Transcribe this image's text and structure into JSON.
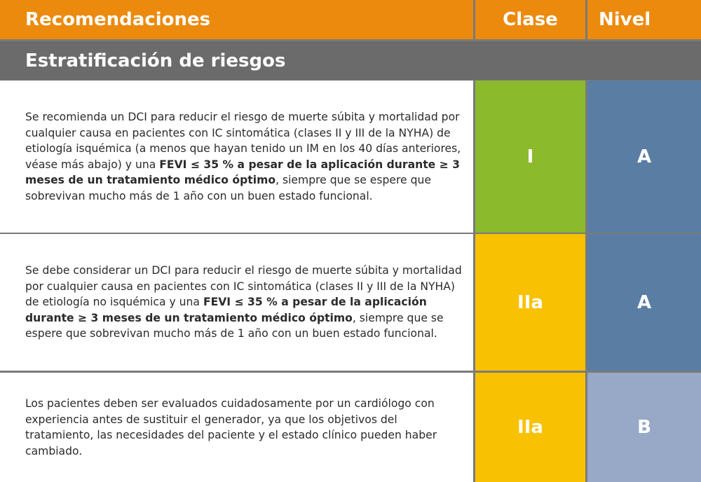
{
  "header": {
    "recommendations": "Recomendaciones",
    "class": "Clase",
    "level": "Nivel"
  },
  "section_title": "Estratificación de riesgos",
  "rows": [
    {
      "text_before": "Se recomienda un DCI para reducir el riesgo de muerte súbita y mortalidad por cualquier causa en pacientes con IC sintomática (clases II y III de la NYHA) de etiología isquémica (a menos que hayan tenido un IM en los 40 días anteriores, véase más abajo) y una ",
      "text_bold": "FEVI ≤ 35 % a pesar de la aplicación durante ≥ 3 meses de un tratamiento médico óptimo",
      "text_after": ", siempre que se espere que sobrevivan mucho más de 1 año con un buen estado funcional.",
      "class": "I",
      "level": "A",
      "class_color": "#8bbb2c",
      "level_color": "#5a7da4"
    },
    {
      "text_before": "Se debe considerar un DCI para reducir el riesgo de muerte súbita y mortalidad por cualquier causa en pacientes con IC sintomática (clases II y III de la NYHA) de etiología no isquémica y una ",
      "text_bold": "FEVI ≤ 35 % a pesar de la aplicación durante ≥ 3 meses de un tratamiento médico óptimo",
      "text_after": ", siempre que se espere que sobrevivan mucho más de 1 año con un buen estado funcional.",
      "class": "IIa",
      "level": "A",
      "class_color": "#f8c102",
      "level_color": "#5a7da4"
    },
    {
      "text_before": "Los pacientes deben ser evaluados cuidadosamente por un cardiólogo con experiencia antes de sustituir el generador, ya que los objetivos del tratamiento, las necesidades del paciente y el estado clínico pueden haber cambiado.",
      "text_bold": "",
      "text_after": "",
      "class": "IIa",
      "level": "B",
      "class_color": "#f8c102",
      "level_color": "#98a9c7"
    }
  ],
  "colors": {
    "header_orange": "#ec8a0e",
    "section_gray": "#6b6b6b",
    "grid_gray": "#7a7a7a"
  }
}
